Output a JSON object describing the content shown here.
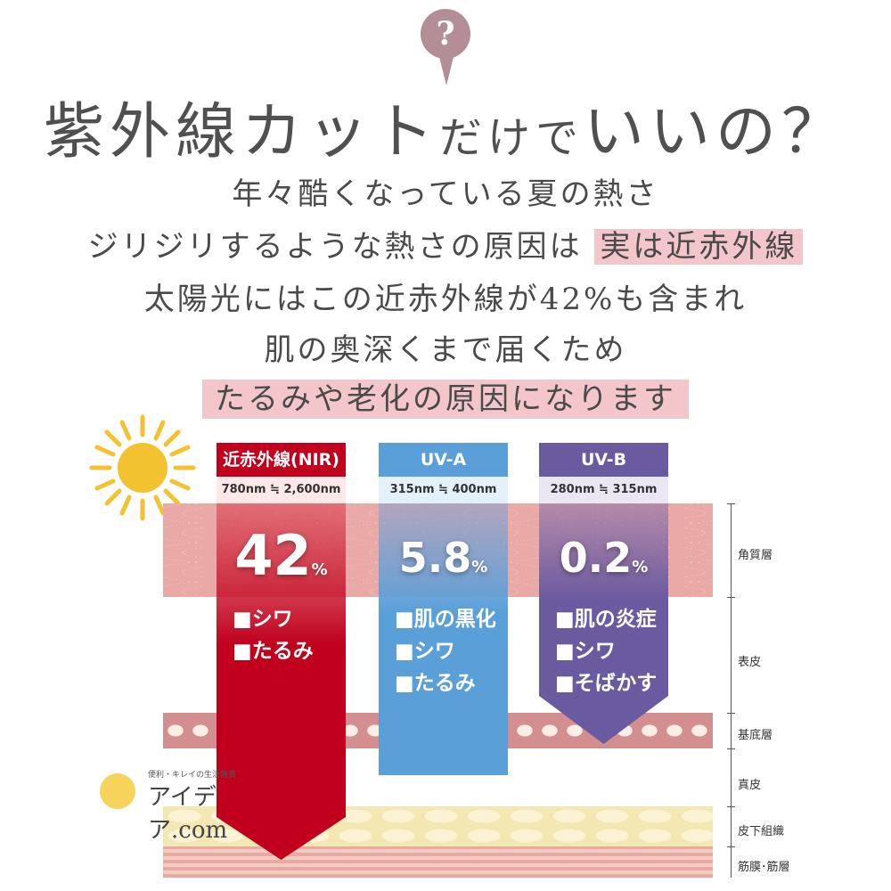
{
  "header": {
    "question_mark": "?",
    "title_large": "紫外線カット",
    "title_small": "だけで",
    "title_end": "いいの？"
  },
  "body_lines": [
    "年々酷くなっている夏の熱さ",
    "ジリジリするような熱さの原因は",
    "実は近赤外線",
    "太陽光にはこの近赤外線が42%も含まれ",
    "肌の奥深くまで届くため",
    "たるみや老化の原因になります"
  ],
  "columns": [
    {
      "name": "近赤外線(NIR)",
      "range": "780nm ≒ 2,600nm",
      "percent": "42",
      "unit": "%",
      "effects": [
        "■シワ",
        "■たるみ"
      ],
      "color": "#c0001c"
    },
    {
      "name": "UV-A",
      "range": "315nm ≒ 400nm",
      "percent": "5.8",
      "unit": "%",
      "effects": [
        "■肌の黒化",
        "■シワ",
        "■たるみ"
      ],
      "color": "#5b9fd8"
    },
    {
      "name": "UV-B",
      "range": "280nm ≒ 315nm",
      "percent": "0.2",
      "unit": "%",
      "effects": [
        "■肌の炎症",
        "■シワ",
        "■そばかす"
      ],
      "color": "#6a5aa0"
    }
  ],
  "skin_layers": [
    "角質層",
    "表皮",
    "基底層",
    "真皮",
    "皮下組織",
    "筋膜･筋層"
  ],
  "logo": {
    "tagline": "便利・キレイの生活雑貨",
    "name": "アイデア.com"
  }
}
